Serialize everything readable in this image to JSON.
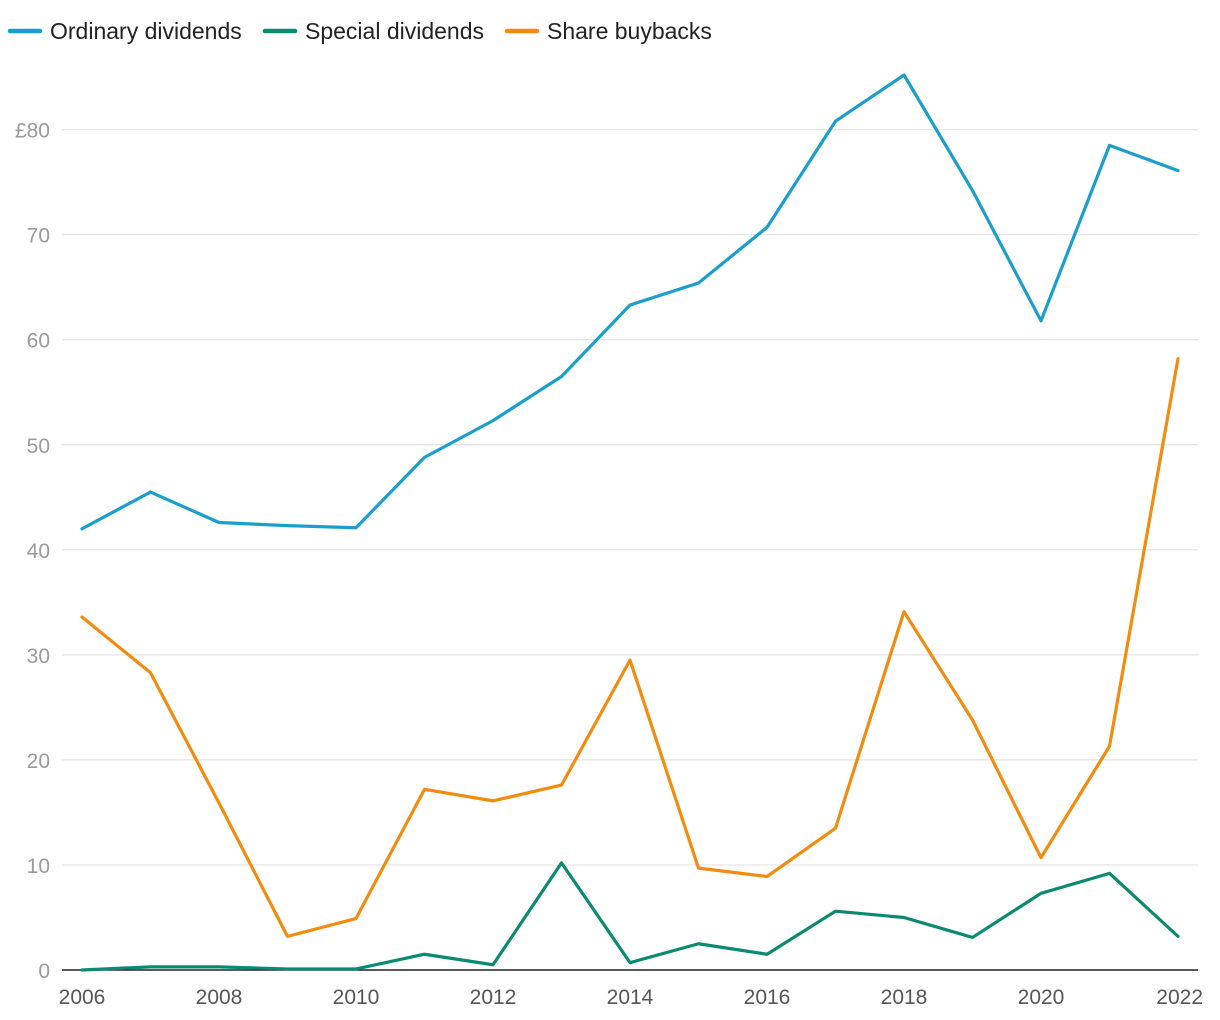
{
  "chart_data": {
    "type": "line",
    "x": [
      2006,
      2007,
      2008,
      2009,
      2010,
      2011,
      2012,
      2013,
      2014,
      2015,
      2016,
      2017,
      2018,
      2019,
      2020,
      2021,
      2022
    ],
    "series": [
      {
        "name": "Ordinary dividends",
        "color": "#1a9fcc",
        "values": [
          42.0,
          45.5,
          42.6,
          42.3,
          42.1,
          48.8,
          52.3,
          56.5,
          63.3,
          65.4,
          70.7,
          80.8,
          85.2,
          74.2,
          61.8,
          78.5,
          76.1
        ]
      },
      {
        "name": "Special dividends",
        "color": "#0a8a70",
        "values": [
          0.0,
          0.3,
          0.3,
          0.1,
          0.1,
          1.5,
          0.5,
          10.2,
          0.7,
          2.5,
          1.5,
          5.6,
          5.0,
          3.1,
          7.3,
          9.2,
          3.2
        ]
      },
      {
        "name": "Share buybacks",
        "color": "#f28c0f",
        "values": [
          33.6,
          28.3,
          15.9,
          3.2,
          4.9,
          17.2,
          16.1,
          17.6,
          29.5,
          9.7,
          8.9,
          13.5,
          34.1,
          23.8,
          10.7,
          21.3,
          58.2
        ]
      }
    ],
    "y_ticks": [
      0,
      10,
      20,
      30,
      40,
      50,
      60,
      70,
      80
    ],
    "y_tick_labels": [
      "0",
      "10",
      "20",
      "30",
      "40",
      "50",
      "60",
      "70",
      "£80"
    ],
    "x_ticks": [
      2006,
      2008,
      2010,
      2012,
      2014,
      2016,
      2018,
      2020,
      2022
    ],
    "x_tick_labels": [
      "2006",
      "2008",
      "2010",
      "2012",
      "2014",
      "2016",
      "2018",
      "2020",
      "2022"
    ],
    "ylim": [
      0,
      85.2
    ],
    "xlim": [
      2006,
      2022
    ],
    "grid": true,
    "legend_position": "top-left"
  }
}
